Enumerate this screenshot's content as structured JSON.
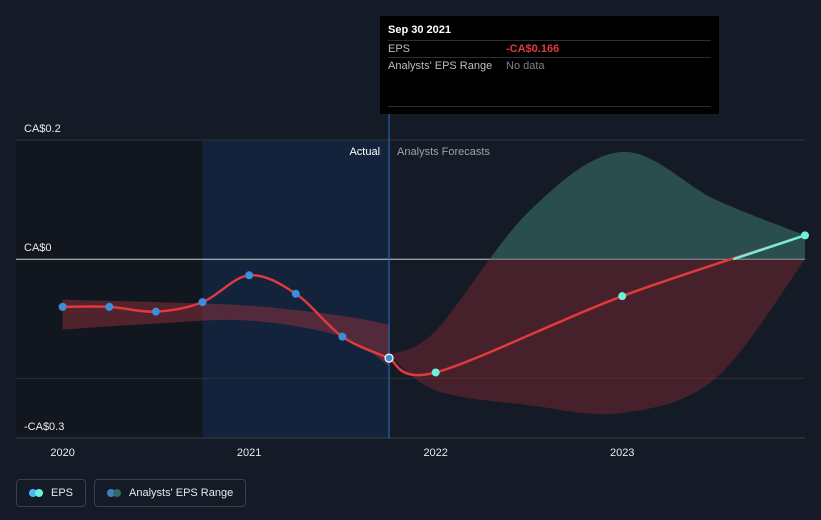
{
  "chart_data": {
    "type": "line",
    "currency": "CA$",
    "y_ticks": [
      {
        "value": 0.2,
        "label": "CA$0.2"
      },
      {
        "value": 0,
        "label": "CA$0"
      },
      {
        "value": -0.3,
        "label": "-CA$0.3"
      }
    ],
    "x_ticks": [
      {
        "value": 2020.0,
        "label": "2020"
      },
      {
        "value": 2021.0,
        "label": "2021"
      },
      {
        "value": 2022.0,
        "label": "2022"
      },
      {
        "value": 2023.0,
        "label": "2023"
      }
    ],
    "xlim": [
      2019.75,
      2023.98
    ],
    "ylim": [
      -0.3,
      0.2
    ],
    "actual_label": "Actual",
    "forecast_label": "Analysts Forecasts",
    "actual_end": 2021.75,
    "highlight_start": 2020.75,
    "series": [
      {
        "name": "EPS",
        "color": "#e0393e",
        "actual": {
          "x": [
            2020.0,
            2020.25,
            2020.5,
            2020.75,
            2021.0,
            2021.25,
            2021.5,
            2021.75
          ],
          "y": [
            -0.08,
            -0.08,
            -0.088,
            -0.072,
            -0.027,
            -0.058,
            -0.13,
            -0.166
          ]
        },
        "forecast": {
          "x": [
            2022.0,
            2023.0,
            2023.98
          ],
          "y": [
            -0.19,
            -0.062,
            0.04
          ]
        }
      }
    ],
    "ranges": [
      {
        "name": "Analysts' EPS Range",
        "kind": "historical",
        "x": [
          2020.0,
          2020.5,
          2021.0,
          2021.5,
          2021.75
        ],
        "upper": [
          -0.068,
          -0.072,
          -0.078,
          -0.095,
          -0.11
        ],
        "lower": [
          -0.118,
          -0.108,
          -0.103,
          -0.13,
          -0.18
        ]
      },
      {
        "name": "Analysts' EPS Range",
        "kind": "forecast",
        "x": [
          2021.75,
          2022.0,
          2022.5,
          2023.0,
          2023.5,
          2023.98
        ],
        "upper": [
          -0.16,
          -0.12,
          0.08,
          0.18,
          0.1,
          0.04
        ],
        "lower": [
          -0.16,
          -0.22,
          -0.245,
          -0.258,
          -0.2,
          0.0
        ]
      }
    ]
  },
  "tooltip": {
    "date": "Sep 30 2021",
    "rows": [
      {
        "key": "EPS",
        "value": "-CA$0.166"
      },
      {
        "key": "Analysts' EPS Range",
        "value": "No data"
      }
    ]
  },
  "legend": {
    "items": [
      {
        "label": "EPS",
        "colors": [
          "#4fb4ff",
          "#6ff0d8"
        ]
      },
      {
        "label": "Analysts' EPS Range",
        "colors": [
          "#3d7fbf",
          "#2f6b6a"
        ]
      }
    ]
  }
}
